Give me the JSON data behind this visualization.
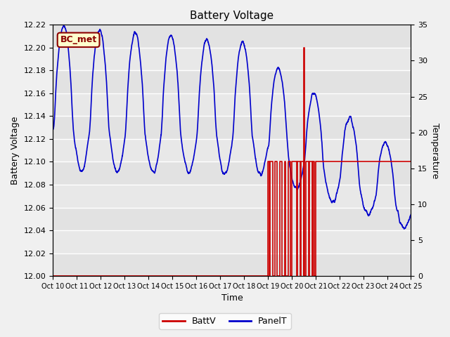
{
  "title": "Battery Voltage",
  "xlabel": "Time",
  "ylabel_left": "Battery Voltage",
  "ylabel_right": "Temperature",
  "xlim": [
    0,
    15
  ],
  "ylim_left": [
    12.0,
    12.22
  ],
  "ylim_right": [
    0,
    35
  ],
  "annotation_text": "BC_met",
  "bg_color": "#f0f0f0",
  "plot_bg_color": "#e8e8e8",
  "line_color_batt": "#cc0000",
  "line_color_panel": "#0000cc",
  "legend_labels": [
    "BattV",
    "PanelT"
  ],
  "ytick_left": [
    12.0,
    12.02,
    12.04,
    12.06,
    12.08,
    12.1,
    12.12,
    12.14,
    12.16,
    12.18,
    12.2,
    12.22
  ],
  "ytick_right": [
    0,
    5,
    10,
    15,
    20,
    25,
    30,
    35
  ],
  "xtick_positions": [
    0,
    1,
    2,
    3,
    4,
    5,
    6,
    7,
    8,
    9,
    10,
    11,
    12,
    13,
    14,
    15
  ],
  "xtick_labels": [
    "Oct 10",
    "Oct 11",
    "Oct 12",
    "Oct 13",
    "Oct 14",
    "Oct 15",
    "Oct 16",
    "Oct 17",
    "Oct 18",
    "Oct 19",
    "Oct 20",
    "Oct 21",
    "Oct 22",
    "Oct 23",
    "Oct 24",
    "Oct 25"
  ]
}
